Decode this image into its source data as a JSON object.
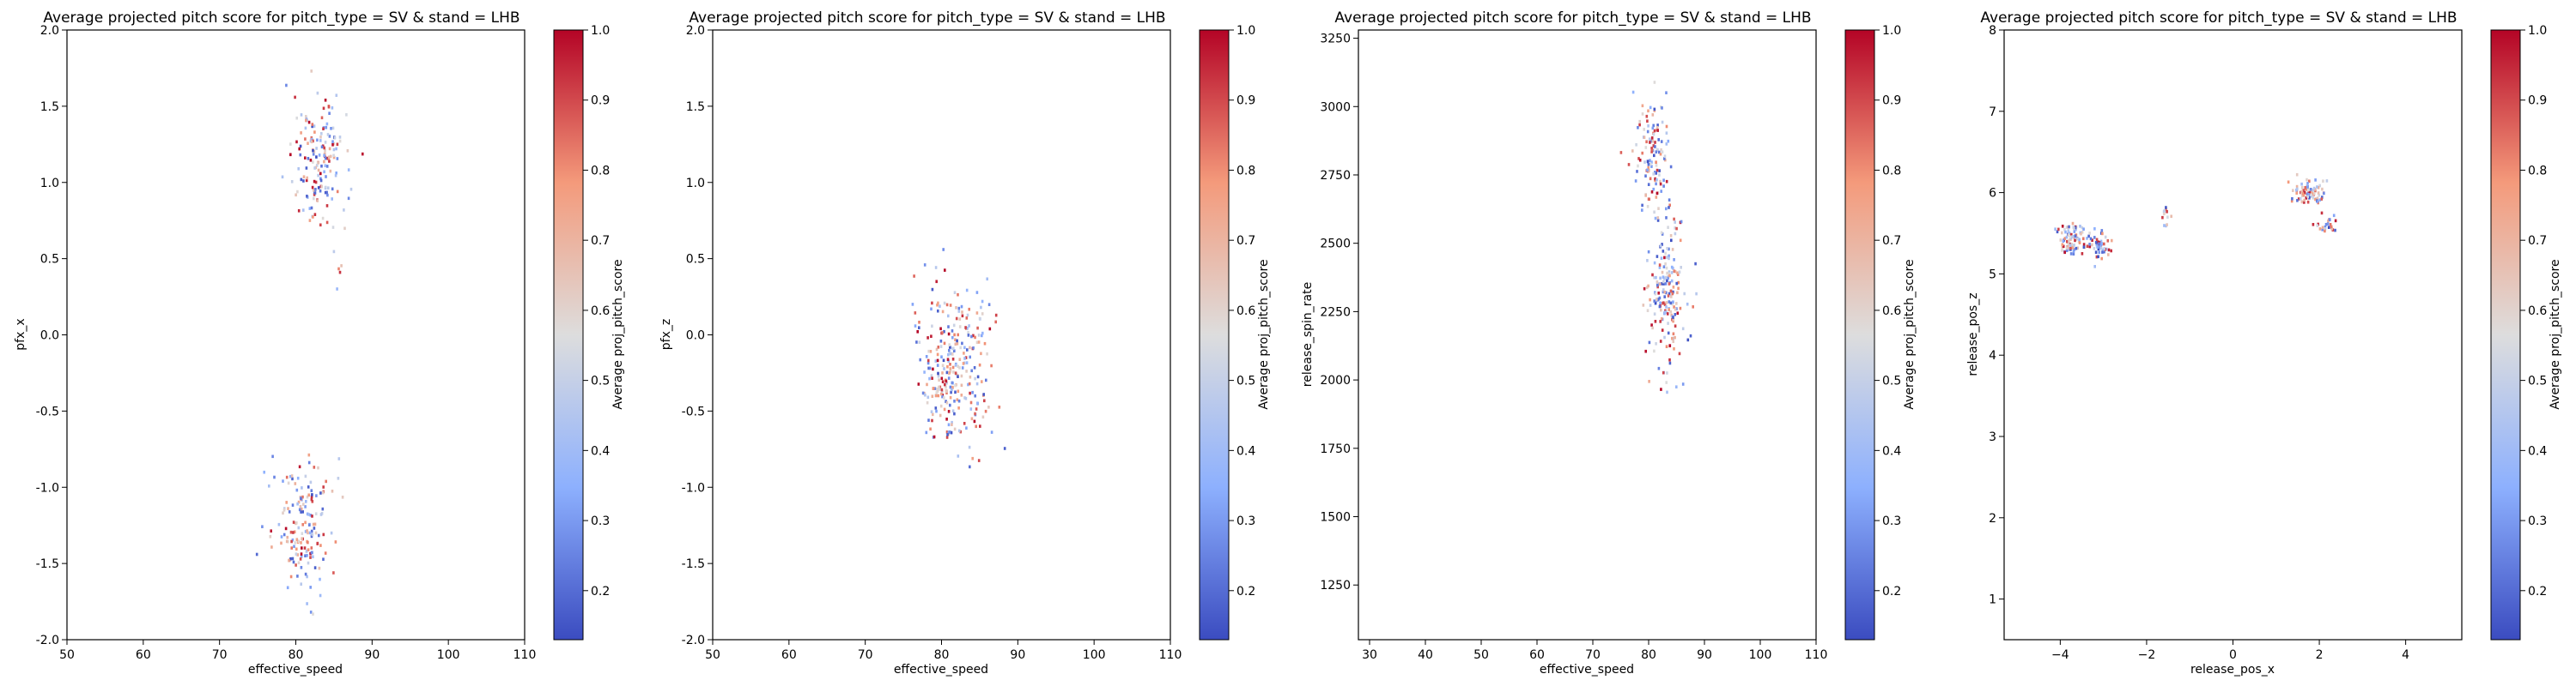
{
  "chart_data": [
    {
      "type": "heatmap",
      "title": "Average projected pitch score for pitch_type = SV & stand = LHB",
      "xlabel": "effective_speed",
      "ylabel": "pfx_x",
      "xlim": [
        50,
        110
      ],
      "ylim": [
        -2.0,
        2.0
      ],
      "x_ticks": [
        "50",
        "60",
        "70",
        "80",
        "90",
        "100",
        "110"
      ],
      "y_ticks": [
        "-2.0",
        "-1.5",
        "-1.0",
        "-0.5",
        "0.0",
        "0.5",
        "1.0",
        "1.5",
        "2.0"
      ],
      "colorbar": {
        "label": "Average proj_pitch_score",
        "colormap": "coolwarm",
        "range": [
          0.13,
          1.0
        ],
        "ticks": [
          "0.2",
          "0.3",
          "0.4",
          "0.5",
          "0.6",
          "0.7",
          "0.8",
          "0.9",
          "1.0"
        ]
      },
      "clusters": [
        {
          "x": 83,
          "y": 1.2,
          "sx": 1.8,
          "sy": 0.22,
          "n": 170
        },
        {
          "x": 80.5,
          "y": -1.2,
          "sx": 1.9,
          "sy": 0.22,
          "n": 170
        },
        {
          "x": 85.5,
          "y": 0.4,
          "sx": 0.4,
          "sy": 0.08,
          "n": 5
        }
      ]
    },
    {
      "type": "heatmap",
      "title": "Average projected pitch score for pitch_type = SV & stand = LHB",
      "xlabel": "effective_speed",
      "ylabel": "pfx_z",
      "xlim": [
        50,
        110
      ],
      "ylim": [
        -2.0,
        2.0
      ],
      "x_ticks": [
        "50",
        "60",
        "70",
        "80",
        "90",
        "100",
        "110"
      ],
      "y_ticks": [
        "-2.0",
        "-1.5",
        "-1.0",
        "-0.5",
        "0.0",
        "0.5",
        "1.0",
        "1.5",
        "2.0"
      ],
      "colorbar": {
        "label": "Average proj_pitch_score",
        "colormap": "coolwarm",
        "range": [
          0.13,
          1.0
        ],
        "ticks": [
          "0.2",
          "0.3",
          "0.4",
          "0.5",
          "0.6",
          "0.7",
          "0.8",
          "0.9",
          "1.0"
        ]
      },
      "clusters": [
        {
          "x": 81.5,
          "y": -0.2,
          "sx": 2.6,
          "sy": 0.28,
          "n": 300
        }
      ]
    },
    {
      "type": "heatmap",
      "title": "Average projected pitch score for pitch_type = SV & stand = LHB",
      "xlabel": "effective_speed",
      "ylabel": "release_spin_rate",
      "xlim": [
        28,
        110
      ],
      "ylim": [
        1050,
        3280
      ],
      "x_ticks": [
        "30",
        "40",
        "50",
        "60",
        "70",
        "80",
        "90",
        "100",
        "110"
      ],
      "y_ticks": [
        "1250",
        "1500",
        "1750",
        "2000",
        "2250",
        "2500",
        "2750",
        "3000",
        "3250"
      ],
      "colorbar": {
        "label": "Average proj_pitch_score",
        "colormap": "coolwarm",
        "range": [
          0.13,
          1.0
        ],
        "ticks": [
          "0.2",
          "0.3",
          "0.4",
          "0.5",
          "0.6",
          "0.7",
          "0.8",
          "0.9",
          "1.0"
        ]
      },
      "clusters": [
        {
          "x": 80.5,
          "y": 2820,
          "sx": 1.5,
          "sy": 110,
          "n": 130
        },
        {
          "x": 83,
          "y": 2330,
          "sx": 1.6,
          "sy": 140,
          "n": 190
        }
      ]
    },
    {
      "type": "heatmap",
      "title": "Average projected pitch score for pitch_type = SV & stand = LHB",
      "xlabel": "release_pos_x",
      "ylabel": "release_pos_z",
      "xlim": [
        -5.3,
        5.3
      ],
      "ylim": [
        0.5,
        8.0
      ],
      "x_ticks": [
        "−4",
        "−2",
        "0",
        "2",
        "4"
      ],
      "y_ticks": [
        "1",
        "2",
        "3",
        "4",
        "5",
        "6",
        "7",
        "8"
      ],
      "colorbar": {
        "label": "Average proj_pitch_score",
        "colormap": "coolwarm",
        "range": [
          0.13,
          1.0
        ],
        "ticks": [
          "0.2",
          "0.3",
          "0.4",
          "0.5",
          "0.6",
          "0.7",
          "0.8",
          "0.9",
          "1.0"
        ]
      },
      "clusters": [
        {
          "x": -3.8,
          "y": 5.45,
          "sx": 0.15,
          "sy": 0.1,
          "n": 90
        },
        {
          "x": -3.15,
          "y": 5.35,
          "sx": 0.14,
          "sy": 0.08,
          "n": 55
        },
        {
          "x": -1.6,
          "y": 5.72,
          "sx": 0.12,
          "sy": 0.05,
          "n": 12
        },
        {
          "x": 1.7,
          "y": 6.02,
          "sx": 0.18,
          "sy": 0.07,
          "n": 85
        },
        {
          "x": 2.15,
          "y": 5.65,
          "sx": 0.12,
          "sy": 0.06,
          "n": 25
        }
      ]
    }
  ]
}
